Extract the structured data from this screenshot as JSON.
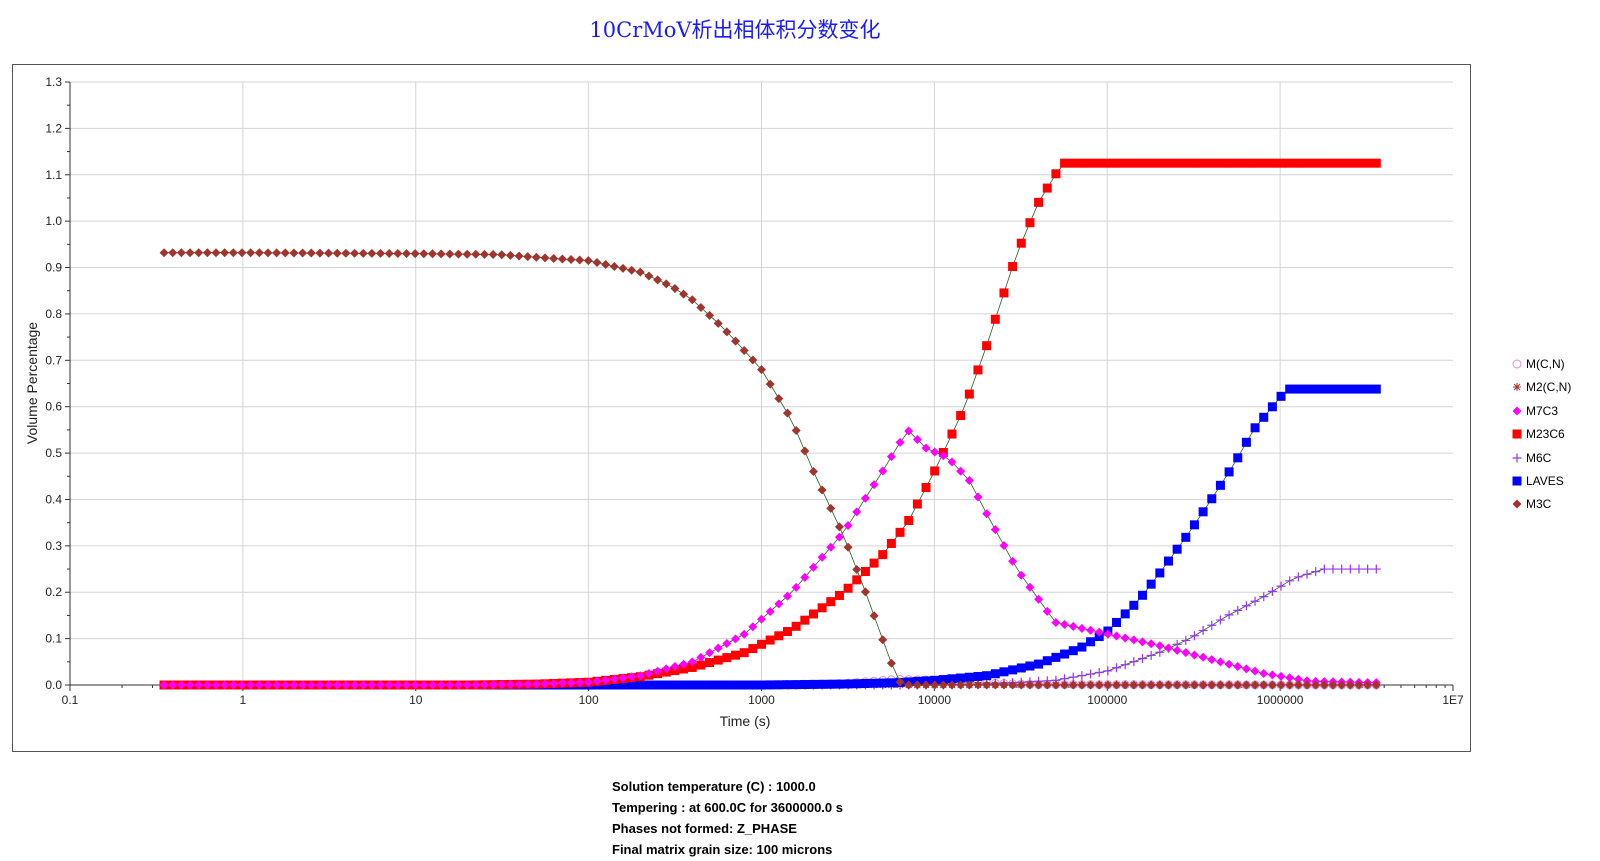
{
  "chart_data": {
    "type": "line",
    "title": "10CrMoV析出相体积分数变化",
    "xlabel": "Time (s)",
    "ylabel": "Volume Percentage",
    "x_scale": "log",
    "xlim": [
      0.1,
      10000000
    ],
    "ylim": [
      0,
      1.3
    ],
    "grid": true,
    "legend_position": "right",
    "x_ticks": [
      "0.1",
      "1",
      "10",
      "100",
      "1000",
      "10000",
      "100000",
      "1000000",
      "1E7"
    ],
    "y_ticks": [
      "0.0",
      "0.1",
      "0.2",
      "0.3",
      "0.4",
      "0.5",
      "0.6",
      "0.7",
      "0.8",
      "0.9",
      "1.0",
      "1.1",
      "1.2",
      "1.3"
    ],
    "series": [
      {
        "name": "M(C,N)",
        "color": "#e08adf",
        "marker": "circle-open",
        "x": [
          0.35,
          100,
          1000,
          3000,
          6000,
          10000,
          20000,
          40000,
          3600000
        ],
        "y": [
          0,
          0,
          0,
          0.003,
          0.012,
          0.01,
          0.004,
          0.001,
          0
        ]
      },
      {
        "name": "M2(C,N)",
        "color": "#a0352e",
        "marker": "asterisk",
        "x": [
          0.35,
          3600000
        ],
        "y": [
          0,
          0
        ]
      },
      {
        "name": "M7C3",
        "color": "#ff00ff",
        "marker": "diamond",
        "x": [
          0.35,
          20,
          50,
          100,
          200,
          400,
          800,
          1500,
          3000,
          5000,
          7000,
          9000,
          12000,
          16000,
          20000,
          30000,
          50000,
          100000,
          200000,
          400000,
          800000,
          1500000,
          3600000
        ],
        "y": [
          0,
          0,
          0.002,
          0.006,
          0.02,
          0.05,
          0.11,
          0.2,
          0.33,
          0.46,
          0.55,
          0.51,
          0.49,
          0.44,
          0.37,
          0.25,
          0.135,
          0.11,
          0.085,
          0.055,
          0.025,
          0.008,
          0.005
        ]
      },
      {
        "name": "M23C6",
        "color": "#ff0000",
        "marker": "square",
        "x": [
          0.35,
          20,
          50,
          100,
          200,
          400,
          800,
          1500,
          3000,
          5000,
          7000,
          10000,
          15000,
          20000,
          30000,
          40000,
          55000,
          100000,
          1000000,
          3600000
        ],
        "y": [
          0,
          0,
          0.002,
          0.006,
          0.018,
          0.038,
          0.07,
          0.12,
          0.2,
          0.28,
          0.35,
          0.46,
          0.6,
          0.73,
          0.93,
          1.04,
          1.125,
          1.125,
          1.125,
          1.125
        ]
      },
      {
        "name": "M6C",
        "color": "#9933ff",
        "marker": "plus",
        "x": [
          0.35,
          10000,
          20000,
          50000,
          100000,
          200000,
          300000,
          500000,
          800000,
          1200000,
          1800000,
          3600000
        ],
        "y": [
          0,
          0,
          0.002,
          0.01,
          0.03,
          0.07,
          0.1,
          0.15,
          0.19,
          0.23,
          0.25,
          0.25
        ]
      },
      {
        "name": "LAVES",
        "color": "#0000ff",
        "marker": "square",
        "x": [
          0.35,
          1000,
          3000,
          6000,
          10000,
          20000,
          40000,
          70000,
          100000,
          150000,
          200000,
          300000,
          400000,
          550000,
          700000,
          1000000,
          1100000,
          3600000
        ],
        "y": [
          0,
          0,
          0.002,
          0.005,
          0.01,
          0.02,
          0.045,
          0.08,
          0.115,
          0.18,
          0.24,
          0.33,
          0.4,
          0.48,
          0.55,
          0.62,
          0.638,
          0.638
        ]
      },
      {
        "name": "M3C",
        "color": "#a0352e",
        "marker": "diamond",
        "x": [
          0.35,
          1,
          10,
          30,
          60,
          100,
          150,
          200,
          300,
          400,
          600,
          800,
          1000,
          1500,
          2000,
          3000,
          4000,
          5000,
          6000,
          6500,
          10000,
          3600000
        ],
        "y": [
          0.932,
          0.932,
          0.93,
          0.928,
          0.92,
          0.915,
          0.9,
          0.89,
          0.86,
          0.83,
          0.77,
          0.72,
          0.68,
          0.57,
          0.46,
          0.32,
          0.2,
          0.1,
          0.02,
          0,
          0,
          0
        ]
      }
    ]
  },
  "notes": [
    "Solution temperature (C) : 1000.0",
    "Tempering : at 600.0C for 3600000.0 s",
    "Phases not formed: Z_PHASE",
    "Final matrix grain size: 100 microns"
  ]
}
